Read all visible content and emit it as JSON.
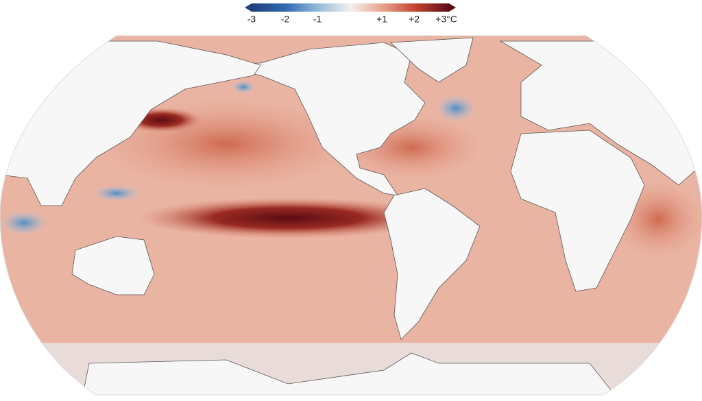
{
  "colorbar": {
    "labels": [
      "-3",
      "-2",
      "-1",
      "+1",
      "+2",
      "+3°C"
    ]
  }
}
